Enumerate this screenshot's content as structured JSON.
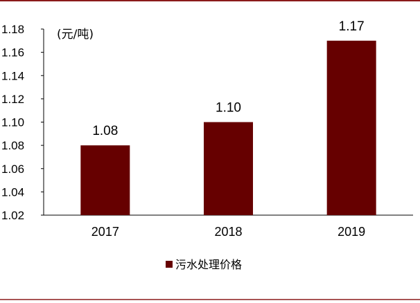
{
  "chart_data": {
    "type": "bar",
    "categories": [
      "2017",
      "2018",
      "2019"
    ],
    "series": [
      {
        "name": "污水处理价格",
        "values": [
          1.08,
          1.1,
          1.17
        ]
      }
    ],
    "data_labels": [
      "1.08",
      "1.10",
      "1.17"
    ],
    "unit_label": "(元/吨)",
    "y_ticks": [
      "1.02",
      "1.04",
      "1.06",
      "1.08",
      "1.10",
      "1.12",
      "1.14",
      "1.16",
      "1.18"
    ],
    "ylim": [
      1.02,
      1.18
    ],
    "grid": false,
    "legend_position": "bottom",
    "colors": {
      "bar": "#660000",
      "frame": "#8B1A1A",
      "axis": "#000000"
    }
  }
}
